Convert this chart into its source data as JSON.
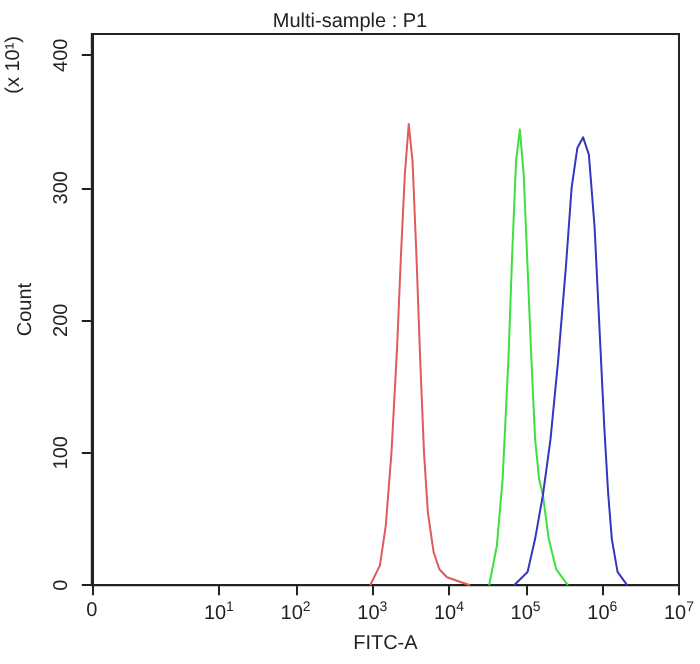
{
  "chart_data": {
    "type": "line",
    "title": "Multi-sample : P1",
    "xlabel": "FITC-A",
    "ylabel": "Count",
    "annotations": [
      "(x 10¹)"
    ],
    "log": "x",
    "xlim": [
      0.22,
      10000000
    ],
    "xticks": [
      {
        "value": 0.22,
        "label": "0"
      },
      {
        "value": 10,
        "label": "10$^{1}$"
      },
      {
        "value": 100,
        "label": "10$^{2}$"
      },
      {
        "value": 1000,
        "label": "10$^{3}$"
      },
      {
        "value": 10000,
        "label": "10$^{4}$"
      },
      {
        "value": 100000,
        "label": "10$^{5}$"
      },
      {
        "value": 1000000,
        "label": "10$^{6}$"
      },
      {
        "value": 10000000,
        "label": "10$^{7}$"
      }
    ],
    "ylim": [
      0,
      416
    ],
    "yticks": [
      0,
      100,
      200,
      300,
      400
    ],
    "grid": false,
    "marker": "none",
    "line_style": "solid",
    "series": [
      {
        "color": "#e05a5a",
        "x": [
          940,
          1260,
          1500,
          1780,
          2110,
          2370,
          2660,
          2990,
          3350,
          3760,
          4220,
          4730,
          5310,
          6310,
          7500,
          9440,
          13300,
          18800
        ],
        "values": [
          0,
          15,
          45,
          100,
          180,
          250,
          310,
          348,
          320,
          250,
          170,
          100,
          55,
          25,
          12,
          6,
          3,
          0
        ]
      },
      {
        "color": "#3ee03e",
        "x": [
          33500,
          42200,
          50100,
          59600,
          66800,
          75000,
          84100,
          94400,
          106000,
          119000,
          133000,
          150000,
          168000,
          200000,
          251000,
          355000
        ],
        "values": [
          0,
          30,
          80,
          170,
          250,
          320,
          344,
          310,
          240,
          170,
          110,
          80,
          68,
          35,
          12,
          0
        ]
      },
      {
        "color": "#3535c0",
        "x": [
          70800,
          106000,
          133000,
          168000,
          211000,
          266000,
          335000,
          398000,
          473000,
          562000,
          668000,
          794000,
          944000,
          1060000,
          1190000,
          1330000,
          1580000,
          2110000
        ],
        "values": [
          0,
          10,
          35,
          68,
          110,
          170,
          240,
          300,
          330,
          338,
          325,
          270,
          180,
          120,
          70,
          35,
          10,
          0
        ]
      }
    ]
  }
}
